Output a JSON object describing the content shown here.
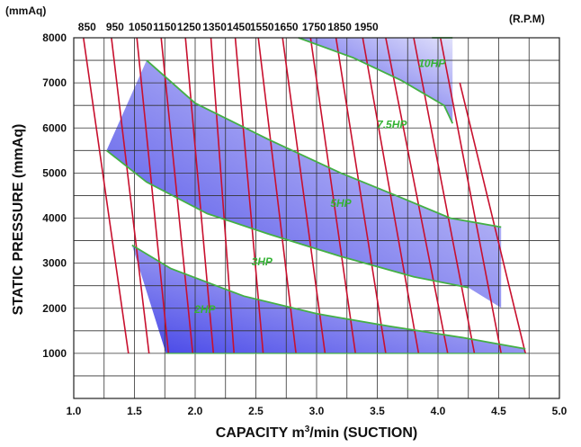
{
  "chart_data": {
    "type": "line",
    "title": "",
    "xlabel_main": "CAPACITY  m",
    "xlabel_sup": "3",
    "xlabel_rest": "/min (SUCTION)",
    "ylabel": "STATIC  PRESSURE  (mmAq)",
    "y_unit": "(mmAq)",
    "rpm_unit": "(R.P.M)",
    "xlim": [
      1.0,
      5.0
    ],
    "ylim": [
      0,
      8000
    ],
    "x_ticks": [
      "1.0",
      "1.5",
      "2.0",
      "2.5",
      "3.0",
      "3.5",
      "4.0",
      "4.5",
      "5.0"
    ],
    "y_ticks": [
      "1000",
      "2000",
      "3000",
      "4000",
      "5000",
      "6000",
      "7000",
      "8000"
    ],
    "y_tick_values": [
      1000,
      2000,
      3000,
      4000,
      5000,
      6000,
      7000,
      8000
    ],
    "grid": true,
    "colors": {
      "rpm_line": "#c8102e",
      "hp_line": "#44b044",
      "band_fill": "#3c3ce6",
      "grid": "#333333"
    },
    "rpm_series": [
      {
        "name": "850",
        "points": [
          [
            1.08,
            8000
          ],
          [
            1.45,
            1000
          ]
        ]
      },
      {
        "name": "950",
        "points": [
          [
            1.31,
            8000
          ],
          [
            1.62,
            1000
          ]
        ]
      },
      {
        "name": "1050",
        "points": [
          [
            1.52,
            8000
          ],
          [
            1.78,
            1000
          ]
        ]
      },
      {
        "name": "1150",
        "points": [
          [
            1.72,
            8000
          ],
          [
            1.98,
            1000
          ]
        ]
      },
      {
        "name": "1250",
        "points": [
          [
            1.92,
            8000
          ],
          [
            2.15,
            1000
          ]
        ]
      },
      {
        "name": "1350",
        "points": [
          [
            2.13,
            8000
          ],
          [
            2.32,
            1000
          ]
        ]
      },
      {
        "name": "1450",
        "points": [
          [
            2.33,
            8000
          ],
          [
            2.56,
            1000
          ]
        ]
      },
      {
        "name": "1550",
        "points": [
          [
            2.52,
            8000
          ],
          [
            2.83,
            1000
          ]
        ]
      },
      {
        "name": "1650",
        "points": [
          [
            2.72,
            8000
          ],
          [
            3.07,
            1000
          ]
        ]
      },
      {
        "name": "1750",
        "points": [
          [
            2.95,
            8000
          ],
          [
            3.32,
            1000
          ]
        ]
      },
      {
        "name": "1850",
        "points": [
          [
            3.16,
            8000
          ],
          [
            3.57,
            1000
          ]
        ]
      },
      {
        "name": "1950",
        "points": [
          [
            3.38,
            8000
          ],
          [
            3.84,
            1000
          ]
        ]
      },
      {
        "name": "",
        "points": [
          [
            3.57,
            8000
          ],
          [
            4.08,
            1000
          ]
        ]
      },
      {
        "name": "",
        "points": [
          [
            3.8,
            8000
          ],
          [
            4.3,
            1000
          ]
        ]
      },
      {
        "name": "",
        "points": [
          [
            4.02,
            8000
          ],
          [
            4.52,
            1000
          ]
        ]
      },
      {
        "name": "",
        "points": [
          [
            4.18,
            7000
          ],
          [
            4.72,
            1000
          ]
        ]
      }
    ],
    "hp_bands": [
      {
        "name": "2HP",
        "label_at": [
          2.08,
          1900
        ],
        "upper": [
          [
            1.48,
            3400
          ],
          [
            1.8,
            2880
          ],
          [
            2.4,
            2270
          ],
          [
            3.0,
            1880
          ],
          [
            3.6,
            1600
          ],
          [
            4.2,
            1350
          ],
          [
            4.72,
            1100
          ]
        ],
        "lower": [
          [
            1.76,
            1000
          ],
          [
            4.72,
            1000
          ]
        ]
      },
      {
        "name": "3HP",
        "label_at": [
          2.55,
          2950
        ],
        "upper": [
          [
            1.27,
            5500
          ],
          [
            1.6,
            4800
          ],
          [
            2.1,
            4100
          ],
          [
            2.6,
            3650
          ],
          [
            3.2,
            3150
          ],
          [
            3.8,
            2700
          ],
          [
            4.25,
            2460
          ]
        ],
        "lower": [
          [
            1.48,
            3400
          ],
          [
            1.8,
            2880
          ],
          [
            2.4,
            2270
          ],
          [
            3.0,
            1880
          ],
          [
            3.6,
            1600
          ],
          [
            4.2,
            1350
          ],
          [
            4.72,
            1100
          ]
        ]
      },
      {
        "name": "5HP",
        "label_at": [
          3.2,
          4250
        ],
        "upper": [
          [
            1.6,
            7500
          ],
          [
            2.0,
            6550
          ],
          [
            2.6,
            5750
          ],
          [
            3.2,
            5000
          ],
          [
            3.7,
            4450
          ],
          [
            4.1,
            4000
          ],
          [
            4.52,
            3800
          ]
        ],
        "lower": [
          [
            1.27,
            5500
          ],
          [
            1.6,
            4800
          ],
          [
            2.1,
            4100
          ],
          [
            2.6,
            3650
          ],
          [
            3.2,
            3150
          ],
          [
            3.8,
            2700
          ],
          [
            4.25,
            2460
          ],
          [
            4.52,
            2010
          ]
        ]
      },
      {
        "name": "7.5HP",
        "label_at": [
          3.62,
          6000
        ],
        "upper": [
          [
            2.85,
            8000
          ],
          [
            3.3,
            7560
          ],
          [
            3.7,
            7050
          ],
          [
            4.05,
            6500
          ],
          [
            4.12,
            6100
          ]
        ],
        "lower": [
          [
            1.6,
            7500
          ],
          [
            2.0,
            6550
          ],
          [
            2.6,
            5750
          ],
          [
            3.2,
            5000
          ],
          [
            3.7,
            4450
          ],
          [
            4.1,
            4000
          ],
          [
            4.52,
            3800
          ]
        ]
      },
      {
        "name": "10HP",
        "label_at": [
          3.95,
          7350
        ],
        "upper": [
          [
            3.95,
            8000
          ],
          [
            4.12,
            8000
          ]
        ],
        "lower": [
          [
            2.85,
            8000
          ],
          [
            3.3,
            7560
          ],
          [
            3.7,
            7050
          ],
          [
            4.05,
            6500
          ],
          [
            4.12,
            6100
          ]
        ]
      }
    ]
  }
}
